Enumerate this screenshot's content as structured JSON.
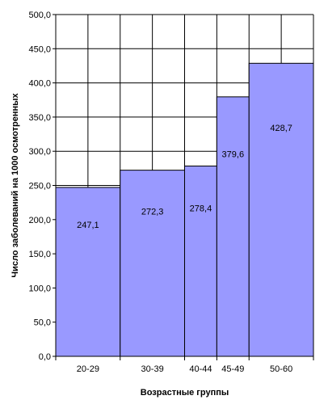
{
  "chart_data": {
    "type": "bar",
    "title": "",
    "xlabel": "Возрастные группы",
    "ylabel": "Число заболеваний на 1000 осмотренных",
    "ylim": [
      0,
      500
    ],
    "y_ticks": [
      "0,0",
      "50,0",
      "100,0",
      "150,0",
      "200,0",
      "250,0",
      "300,0",
      "350,0",
      "400,0",
      "450,0",
      "500,0"
    ],
    "y_tick_values": [
      0,
      50,
      100,
      150,
      200,
      250,
      300,
      350,
      400,
      450,
      500
    ],
    "categories": [
      "20-29",
      "30-39",
      "40-44",
      "45-49",
      "50-60"
    ],
    "bins": [
      [
        20,
        30
      ],
      [
        30,
        40
      ],
      [
        40,
        45
      ],
      [
        45,
        50
      ],
      [
        50,
        60
      ]
    ],
    "x_range": [
      20,
      60
    ],
    "values": [
      247.1,
      272.3,
      278.4,
      379.6,
      428.7
    ],
    "value_labels": [
      "247,1",
      "272,3",
      "278,4",
      "379,6",
      "428,7"
    ],
    "grid": true,
    "bar_color": "#9999ff",
    "bar_edge_color": "#000000",
    "grid_color": "#000000",
    "background_color": "#ffffff"
  }
}
